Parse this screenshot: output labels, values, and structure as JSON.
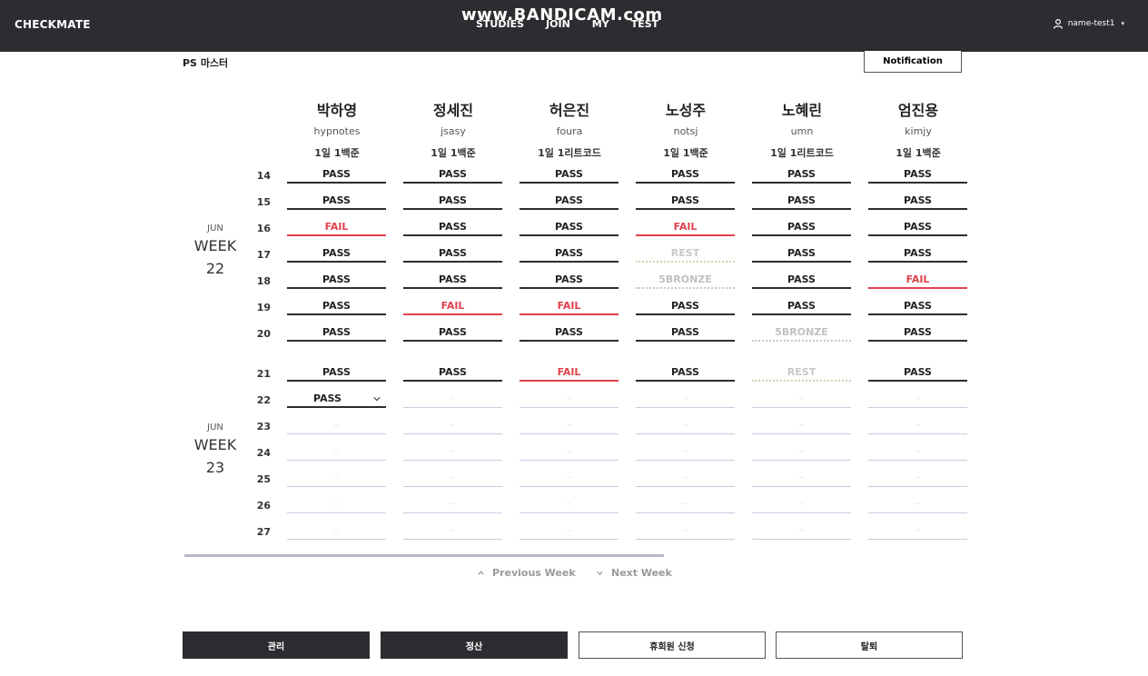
{
  "header": {
    "brand": "CHECKMATE",
    "nav": [
      "STUDIES",
      "JOIN",
      "MY",
      "TEST"
    ],
    "watermark": "www.BANDICAM.com",
    "user": "name-test1"
  },
  "study": {
    "title": "PS 마스터",
    "notification_label": "Notification"
  },
  "members": [
    {
      "name": "박하영",
      "handle": "hypnotes",
      "goal": "1일 1백준"
    },
    {
      "name": "정세진",
      "handle": "jsasy",
      "goal": "1일 1백준"
    },
    {
      "name": "허은진",
      "handle": "foura",
      "goal": "1일 1리트코드"
    },
    {
      "name": "노성주",
      "handle": "notsj",
      "goal": "1일 1백준"
    },
    {
      "name": "노혜린",
      "handle": "umn",
      "goal": "1일 1리트코드"
    },
    {
      "name": "엄진용",
      "handle": "kimjy",
      "goal": "1일 1백준"
    }
  ],
  "weeks": [
    {
      "month": "JUN",
      "label": "WEEK",
      "number": "22"
    },
    {
      "month": "JUN",
      "label": "WEEK",
      "number": "23"
    }
  ],
  "days": [
    "14",
    "15",
    "16",
    "17",
    "18",
    "19",
    "20",
    "21",
    "22",
    "23",
    "24",
    "25",
    "26",
    "27"
  ],
  "grid": [
    [
      "PASS",
      "PASS",
      "PASS",
      "PASS",
      "PASS",
      "PASS"
    ],
    [
      "PASS",
      "PASS",
      "PASS",
      "PASS",
      "PASS",
      "PASS"
    ],
    [
      "FAIL",
      "PASS",
      "PASS",
      "FAIL",
      "PASS",
      "PASS"
    ],
    [
      "PASS",
      "PASS",
      "PASS",
      "REST",
      "PASS",
      "PASS"
    ],
    [
      "PASS",
      "PASS",
      "PASS",
      "5BRONZE",
      "PASS",
      "FAIL"
    ],
    [
      "PASS",
      "FAIL",
      "FAIL",
      "PASS",
      "PASS",
      "PASS"
    ],
    [
      "PASS",
      "PASS",
      "PASS",
      "PASS",
      "5BRONZE",
      "PASS"
    ],
    [
      "PASS",
      "PASS",
      "FAIL",
      "PASS",
      "REST",
      "PASS"
    ],
    [
      "PASS",
      "--",
      "--",
      "--",
      "--",
      "--"
    ],
    [
      "--",
      "--",
      "--",
      "--",
      "--",
      "--"
    ],
    [
      "--",
      "--",
      "--",
      "--",
      "--",
      "--"
    ],
    [
      "--",
      "--",
      "--",
      "--",
      "--",
      "--"
    ],
    [
      "--",
      "--",
      "--",
      "--",
      "--",
      "--"
    ],
    [
      "--",
      "--",
      "--",
      "--",
      "--",
      "--"
    ]
  ],
  "pager": {
    "previous": "Previous Week",
    "next": "Next Week"
  },
  "actions": {
    "manage": "관리",
    "settle": "정산",
    "leave_request": "휴회원 신청",
    "withdraw": "탈퇴"
  },
  "colors": {
    "dark": "#2b2d30",
    "fail": "#e0414d",
    "muted": "#c8c8c8"
  }
}
